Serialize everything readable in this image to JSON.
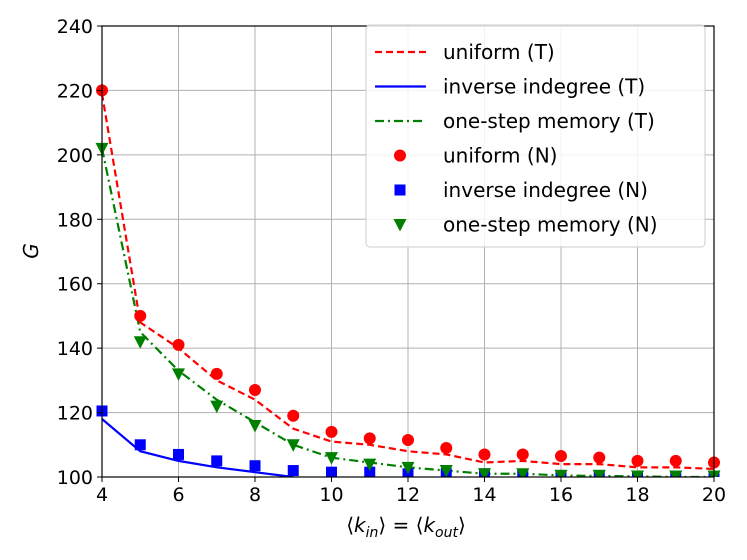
{
  "chart_data": {
    "type": "line",
    "title": "",
    "xlabel": "⟨k_in⟩ = ⟨k_out⟩",
    "xlabel_parts": {
      "open1": "⟨",
      "k1": "k",
      "sub1": "in",
      "mid": "⟩ = ⟨",
      "k2": "k",
      "sub2": "out",
      "close2": "⟩"
    },
    "ylabel": "G",
    "xlim": [
      4,
      20
    ],
    "ylim": [
      100,
      240
    ],
    "xticks": [
      4,
      6,
      8,
      10,
      12,
      14,
      16,
      18,
      20
    ],
    "yticks": [
      100,
      120,
      140,
      160,
      180,
      200,
      220,
      240
    ],
    "grid": true,
    "legend_position": "top-right",
    "series": [
      {
        "name": "uniform (T)",
        "kind": "line",
        "style": "dashed",
        "color": "#ff0000",
        "x": [
          4,
          5,
          6,
          7,
          8,
          9,
          10,
          11,
          12,
          13,
          14,
          15,
          16,
          17,
          18,
          19,
          20
        ],
        "y": [
          219,
          148,
          140,
          130,
          124,
          115,
          111,
          110,
          108,
          107,
          104.5,
          105,
          104,
          104,
          103,
          103,
          102.5
        ]
      },
      {
        "name": "inverse indegree (T)",
        "kind": "line",
        "style": "solid",
        "color": "#0000ff",
        "x": [
          4,
          5,
          6,
          7,
          8,
          9
        ],
        "y": [
          118,
          108,
          105,
          103,
          101.5,
          100
        ]
      },
      {
        "name": "one-step memory (T)",
        "kind": "line",
        "style": "dashdot",
        "color": "#008000",
        "x": [
          4,
          5,
          6,
          7,
          8,
          9,
          10,
          11,
          12,
          13,
          14,
          15,
          16,
          17,
          18,
          19,
          20
        ],
        "y": [
          202,
          145,
          133,
          124,
          117,
          110,
          106,
          104.5,
          103,
          102,
          101,
          101,
          100.5,
          100.3,
          100.2,
          100,
          100
        ]
      },
      {
        "name": "uniform (N)",
        "kind": "marker",
        "marker": "circle",
        "color": "#ff0000",
        "x": [
          4,
          5,
          6,
          7,
          8,
          9,
          10,
          11,
          12,
          13,
          14,
          15,
          16,
          17,
          18,
          19,
          20
        ],
        "y": [
          220,
          150,
          141,
          132,
          127,
          119,
          114,
          112,
          111.5,
          109,
          107,
          107,
          106.5,
          106,
          105,
          105,
          104.5
        ]
      },
      {
        "name": "inverse indegree (N)",
        "kind": "marker",
        "marker": "square",
        "color": "#0000ff",
        "x": [
          4,
          5,
          6,
          7,
          8,
          9,
          10,
          11,
          12,
          13,
          14,
          15,
          16,
          17,
          18,
          19,
          20
        ],
        "y": [
          120.5,
          110,
          107,
          105,
          103.5,
          102,
          101.5,
          101.5,
          101,
          101,
          101,
          100.5,
          100.5,
          100.5,
          100.3,
          100.3,
          100.3
        ]
      },
      {
        "name": "one-step memory (N)",
        "kind": "marker",
        "marker": "triangle-down",
        "color": "#008000",
        "x": [
          4,
          5,
          6,
          7,
          8,
          9,
          10,
          11,
          12,
          13,
          14,
          15,
          16,
          17,
          18,
          19,
          20
        ],
        "y": [
          202,
          142,
          132,
          122,
          116,
          110,
          106,
          104,
          103,
          102,
          101,
          101,
          100.5,
          100.5,
          100.3,
          100.3,
          100.3
        ]
      }
    ]
  }
}
